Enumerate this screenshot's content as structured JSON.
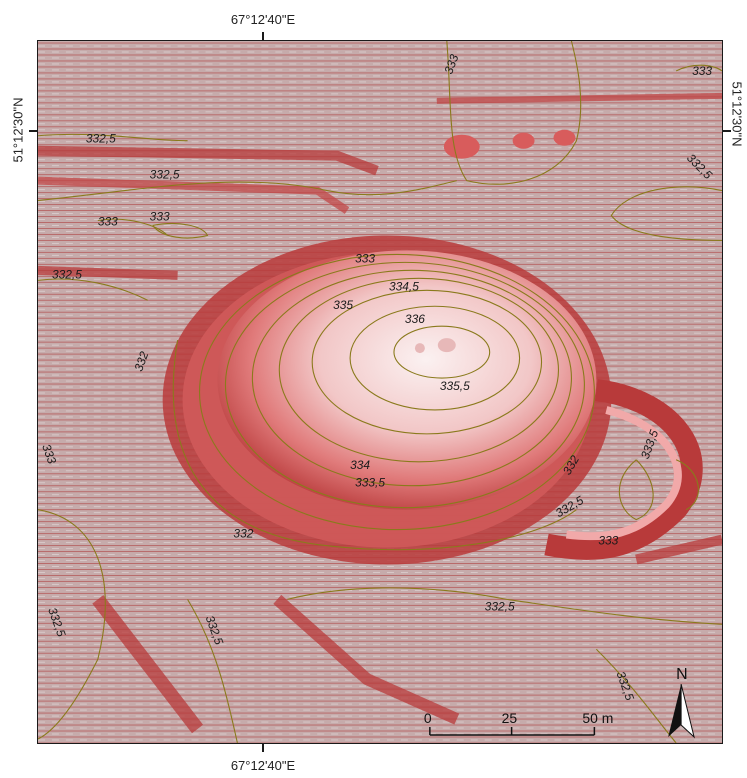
{
  "map": {
    "coordinates": {
      "top": "67°12'40\"E",
      "bottom": "67°12'40\"E",
      "left": "51°12'30\"N",
      "right": "51°12'30\"N"
    },
    "contour_labels": [
      "333",
      "333",
      "332,5",
      "332,5",
      "332,5",
      "333",
      "333",
      "332,5",
      "333",
      "334,5",
      "335",
      "336",
      "332",
      "335,5",
      "333",
      "334",
      "333,5",
      "332",
      "333,5",
      "332,5",
      "333",
      "332",
      "332,5",
      "332,5",
      "332,5",
      "332,5"
    ],
    "scale_bar": {
      "labels": [
        "0",
        "25",
        "50 m"
      ]
    },
    "north_arrow": {
      "label": "N"
    },
    "colors": {
      "background": "#c4a7a7",
      "relief_dark": "#b83a3a",
      "relief_light": "#f4dede",
      "contour_line": "#8a7a1c"
    }
  }
}
